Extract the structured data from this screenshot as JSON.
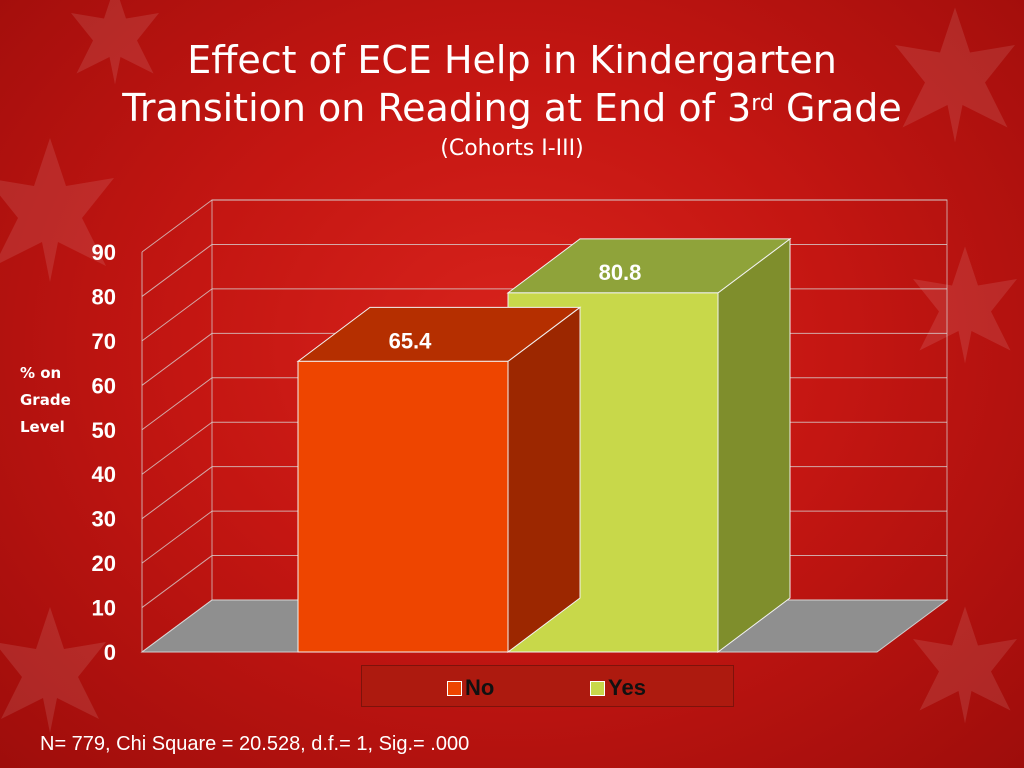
{
  "slide": {
    "title_line1": "Effect of ECE Help in Kindergarten",
    "title_line2_pre": "Transition on Reading at End of 3",
    "title_line2_sup": "rd",
    "title_line2_post": " Grade",
    "subtitle": "(Cohorts I-III)",
    "ylabel_lines": [
      "% on",
      "Grade",
      "Level"
    ],
    "footnote": "N= 779, Chi Square = 20.528, d.f.= 1, Sig.= .000"
  },
  "chart_data": {
    "type": "bar",
    "categories": [
      "No",
      "Yes"
    ],
    "values": [
      65.4,
      80.8
    ],
    "data_labels": [
      "65.4",
      "80.8"
    ],
    "ylim": [
      0,
      90
    ],
    "yticks": [
      0,
      10,
      20,
      30,
      40,
      50,
      60,
      70,
      80,
      90
    ],
    "grid": true,
    "legend_position": "bottom",
    "colors": {
      "No": "#ee4500",
      "Yes": "#c8d84a"
    }
  }
}
